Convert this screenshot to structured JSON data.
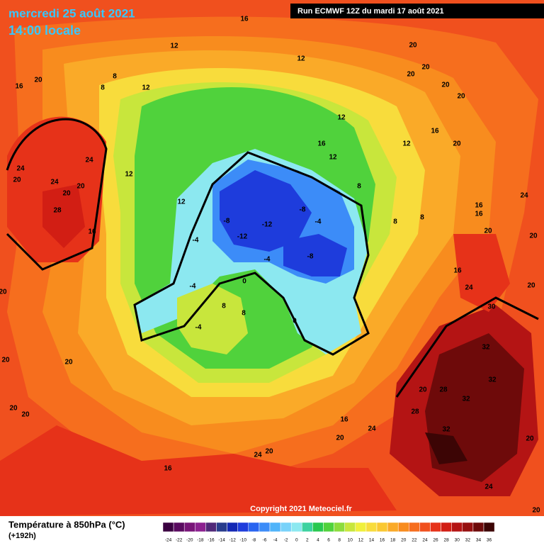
{
  "header": {
    "date": "mercredi 25 août 2021",
    "time": "14:00 locale",
    "run": "Run ECMWF 12Z du mardi 17 août 2021"
  },
  "map": {
    "copyright": "Copyright 2021 Meteociel.fr",
    "labels": [
      16,
      12,
      12,
      20,
      16,
      20,
      8,
      8,
      12,
      20,
      20,
      20,
      20,
      12,
      16,
      16,
      12,
      12,
      20,
      24,
      24,
      20,
      24,
      20,
      20,
      12,
      12,
      28,
      16,
      8,
      8,
      8,
      16,
      16,
      24,
      20,
      20,
      -8,
      -12,
      -8,
      -4,
      -12,
      -4,
      -4,
      -8,
      16,
      24,
      30,
      20,
      20,
      0,
      -4,
      8,
      8,
      -4,
      0,
      32,
      20,
      20,
      32,
      20,
      28,
      32,
      20,
      28,
      20,
      16,
      24,
      20,
      32,
      20,
      24,
      20,
      16,
      24,
      20
    ]
  },
  "legend": {
    "title": "Température à 850hPa (°C)",
    "lead": "(+192h)",
    "ticks": [
      -24,
      -22,
      -20,
      -18,
      -16,
      -14,
      -12,
      -10,
      -8,
      -6,
      -4,
      -2,
      0,
      2,
      4,
      6,
      8,
      10,
      12,
      14,
      16,
      18,
      20,
      22,
      24,
      26,
      28,
      30,
      32,
      34,
      36
    ],
    "colors": [
      "#3a0040",
      "#5a0a60",
      "#781478",
      "#8c2090",
      "#502878",
      "#283c8c",
      "#1428b4",
      "#1e3cdc",
      "#2864f0",
      "#3c8cf8",
      "#50b4fa",
      "#78d2fa",
      "#8ce8f0",
      "#3cd2a0",
      "#28c850",
      "#50d23c",
      "#8cdc3c",
      "#c8e63c",
      "#f0f03c",
      "#f8dc3c",
      "#fac832",
      "#faaa28",
      "#f88c1e",
      "#f66e1e",
      "#f0501e",
      "#e63219",
      "#d21e14",
      "#b41414",
      "#961010",
      "#6e0a0a",
      "#3c0505"
    ]
  }
}
